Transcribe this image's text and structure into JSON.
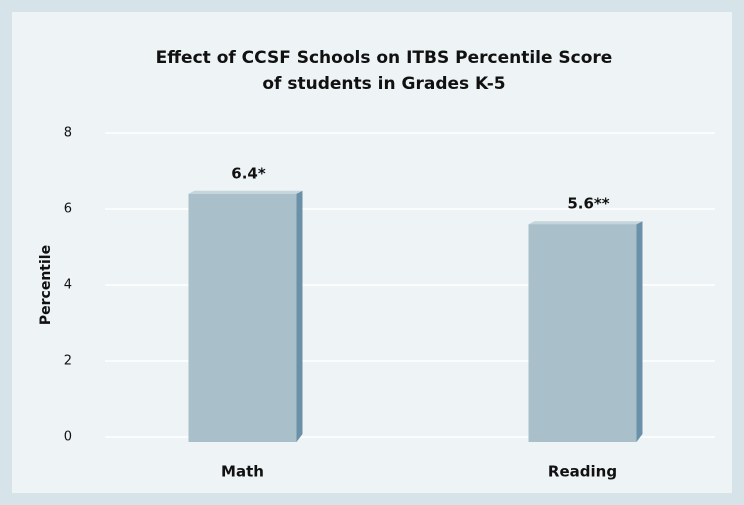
{
  "chart_data": {
    "type": "bar",
    "title": [
      "Effect of CCSF Schools on ITBS Percentile Score",
      "of students in Grades K-5"
    ],
    "y_label": "Percentile",
    "categories": [
      "Math",
      "Reading"
    ],
    "values": [
      6.4,
      5.6
    ],
    "value_labels": [
      "6.4*",
      "5.6**"
    ],
    "color": "#a9bfc9",
    "ylim": [
      0,
      8
    ],
    "yticks": [
      0,
      2,
      4,
      6,
      8
    ],
    "grid": true
  }
}
